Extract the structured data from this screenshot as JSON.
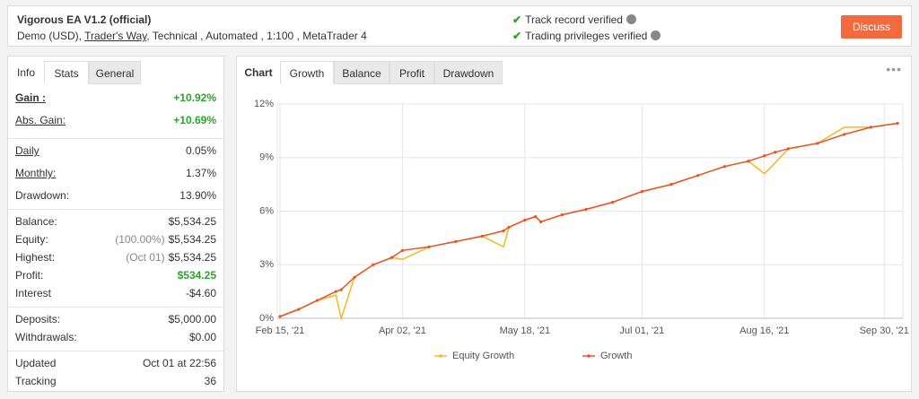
{
  "header": {
    "title": "Vigorous EA V1.2 (official)",
    "account": "Demo (USD)",
    "broker": "Trader's Way",
    "details": ", Technical , Automated , 1:100 , MetaTrader 4",
    "badges": [
      "Track record verified",
      "Trading privileges verified"
    ],
    "button": "Discuss"
  },
  "stats_panel": {
    "tabs": [
      "Info",
      "Stats",
      "General"
    ],
    "active_tab": 1,
    "groups": [
      [
        {
          "label": "Gain :",
          "value": "+10.92%",
          "underline": true,
          "color": "#2aa52a",
          "bold": true
        },
        {
          "label": "Abs. Gain:",
          "value": "+10.69%",
          "underline": true,
          "color": "#2aa52a"
        }
      ],
      [
        {
          "label": "Daily",
          "value": "0.05%",
          "underline": true
        },
        {
          "label": "Monthly:",
          "value": "1.37%",
          "underline": true
        },
        {
          "label": "Drawdown:",
          "value": "13.90%"
        }
      ],
      [
        {
          "label": "Balance:",
          "value": "$5,534.25"
        },
        {
          "label": "Equity:",
          "note": "(100.00%)",
          "value": "$5,534.25"
        },
        {
          "label": "Highest:",
          "note": "(Oct 01)",
          "value": "$5,534.25"
        },
        {
          "label": "Profit:",
          "value": "$534.25",
          "color": "#2aa52a"
        },
        {
          "label": "Interest",
          "value": "-$4.60"
        }
      ],
      [
        {
          "label": "Deposits:",
          "value": "$5,000.00"
        },
        {
          "label": "Withdrawals:",
          "value": "$0.00"
        }
      ],
      [
        {
          "label": "Updated",
          "value": "Oct 01 at 22:56"
        },
        {
          "label": "Tracking",
          "value": "36"
        }
      ]
    ]
  },
  "chart_panel": {
    "tabs": [
      "Chart",
      "Growth",
      "Balance",
      "Profit",
      "Drawdown"
    ],
    "active_tab": 1
  },
  "chart_data": {
    "type": "line",
    "x": [
      "2021-02-15",
      "2021-02-22",
      "2021-03-01",
      "2021-03-08",
      "2021-03-10",
      "2021-03-15",
      "2021-03-22",
      "2021-03-29",
      "2021-04-02",
      "2021-04-12",
      "2021-04-22",
      "2021-05-02",
      "2021-05-10",
      "2021-05-12",
      "2021-05-18",
      "2021-05-22",
      "2021-05-24",
      "2021-06-01",
      "2021-06-10",
      "2021-06-20",
      "2021-07-01",
      "2021-07-12",
      "2021-07-22",
      "2021-08-01",
      "2021-08-10",
      "2021-08-16",
      "2021-08-20",
      "2021-08-25",
      "2021-09-05",
      "2021-09-15",
      "2021-09-25",
      "2021-10-05"
    ],
    "series": [
      {
        "name": "Equity Growth",
        "color": "#f5b820",
        "values": [
          0.1,
          0.5,
          1.0,
          1.3,
          0.0,
          2.3,
          3.0,
          3.4,
          3.3,
          4.0,
          4.3,
          4.6,
          4.0,
          5.1,
          5.5,
          5.7,
          5.4,
          5.8,
          6.1,
          6.5,
          7.1,
          7.5,
          8.0,
          8.5,
          8.8,
          8.1,
          8.7,
          9.5,
          9.8,
          10.7,
          10.7,
          10.92
        ]
      },
      {
        "name": "Growth",
        "color": "#e8532a",
        "values": [
          0.1,
          0.5,
          1.0,
          1.5,
          1.6,
          2.3,
          3.0,
          3.4,
          3.8,
          4.0,
          4.3,
          4.6,
          4.9,
          5.1,
          5.5,
          5.7,
          5.4,
          5.8,
          6.1,
          6.5,
          7.1,
          7.5,
          8.0,
          8.5,
          8.8,
          9.1,
          9.3,
          9.5,
          9.8,
          10.3,
          10.7,
          10.92
        ]
      }
    ],
    "xlim": [
      "2021-02-14",
      "2021-10-07"
    ],
    "xticks": [
      {
        "value": "2021-02-15",
        "label": "Feb 15, '21"
      },
      {
        "value": "2021-04-02",
        "label": "Apr 02, '21"
      },
      {
        "value": "2021-05-18",
        "label": "May 18, '21"
      },
      {
        "value": "2021-07-01",
        "label": "Jul 01, '21"
      },
      {
        "value": "2021-08-16",
        "label": "Aug 16, '21"
      },
      {
        "value": "2021-09-30",
        "label": "Sep 30, '21"
      }
    ],
    "ylim": [
      0,
      12
    ],
    "yticks": [
      {
        "value": 0,
        "label": "0%"
      },
      {
        "value": 3,
        "label": "3%"
      },
      {
        "value": 6,
        "label": "6%"
      },
      {
        "value": 9,
        "label": "9%"
      },
      {
        "value": 12,
        "label": "12%"
      }
    ],
    "grid": true
  }
}
